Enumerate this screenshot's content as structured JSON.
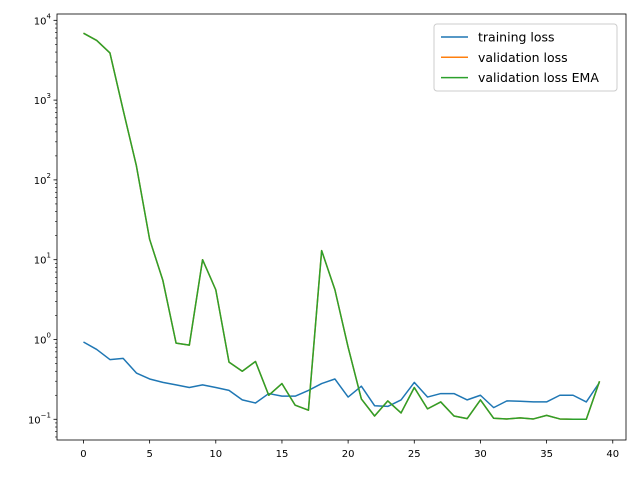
{
  "chart_data": {
    "type": "line",
    "title": "",
    "xlabel": "",
    "ylabel": "",
    "yscale": "log",
    "xlim": [
      -2,
      41
    ],
    "ylim": [
      0.055,
      12000
    ],
    "grid": false,
    "legend_position": "top-right",
    "x_ticks": [
      0,
      5,
      10,
      15,
      20,
      25,
      30,
      35,
      40
    ],
    "x_tick_labels": [
      "0",
      "5",
      "10",
      "15",
      "20",
      "25",
      "30",
      "35",
      "40"
    ],
    "y_ticks": [
      0.1,
      1,
      10,
      100,
      1000,
      10000
    ],
    "y_tick_mantissa": [
      "10",
      "10",
      "10",
      "10",
      "10",
      "10"
    ],
    "y_tick_exponents": [
      "−1",
      "0",
      "1",
      "2",
      "3",
      "4"
    ],
    "x": [
      0,
      1,
      2,
      3,
      4,
      5,
      6,
      7,
      8,
      9,
      10,
      11,
      12,
      13,
      14,
      15,
      16,
      17,
      18,
      19,
      20,
      21,
      22,
      23,
      24,
      25,
      26,
      27,
      28,
      29,
      30,
      31,
      32,
      33,
      34,
      35,
      36,
      37,
      38,
      39
    ],
    "series": [
      {
        "name": "training loss",
        "color": "#1f77b4",
        "values": [
          0.93,
          0.75,
          0.56,
          0.58,
          0.38,
          0.32,
          0.29,
          0.27,
          0.25,
          0.27,
          0.25,
          0.23,
          0.175,
          0.16,
          0.21,
          0.195,
          0.195,
          0.23,
          0.28,
          0.32,
          0.19,
          0.26,
          0.148,
          0.145,
          0.175,
          0.29,
          0.19,
          0.21,
          0.21,
          0.175,
          0.2,
          0.14,
          0.17,
          0.168,
          0.165,
          0.165,
          0.2,
          0.2,
          0.165,
          0.29
        ]
      },
      {
        "name": "validation loss",
        "color": "#ff7f0e",
        "values": [
          6900,
          5600,
          3900,
          750,
          150,
          18,
          5.5,
          0.9,
          0.85,
          10,
          4.2,
          0.52,
          0.4,
          0.53,
          0.2,
          0.28,
          0.15,
          0.13,
          13,
          4.2,
          0.8,
          0.18,
          0.11,
          0.17,
          0.12,
          0.25,
          0.135,
          0.165,
          0.11,
          0.102,
          0.175,
          0.103,
          0.101,
          0.104,
          0.101,
          0.112,
          0.101,
          0.1,
          0.1,
          0.3
        ]
      },
      {
        "name": "validation loss EMA",
        "color": "#2ca02c",
        "values": [
          6900,
          5600,
          3900,
          750,
          150,
          18,
          5.5,
          0.9,
          0.85,
          10,
          4.2,
          0.52,
          0.4,
          0.53,
          0.2,
          0.28,
          0.15,
          0.13,
          13,
          4.2,
          0.8,
          0.18,
          0.11,
          0.17,
          0.12,
          0.25,
          0.135,
          0.165,
          0.11,
          0.102,
          0.175,
          0.103,
          0.101,
          0.104,
          0.101,
          0.112,
          0.101,
          0.1,
          0.1,
          0.3
        ]
      }
    ]
  }
}
